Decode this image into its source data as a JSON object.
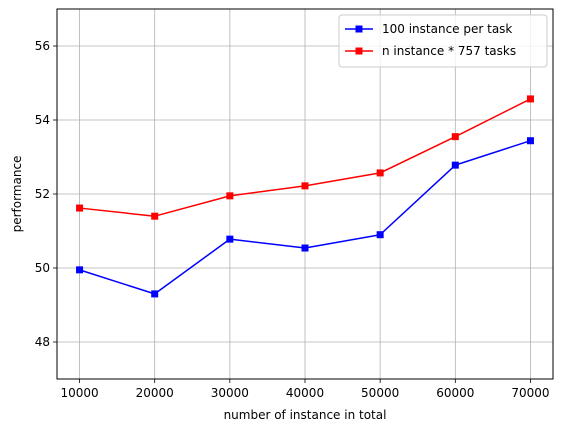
{
  "chart_data": {
    "type": "line",
    "title": "",
    "xlabel": "number of instance in total",
    "ylabel": "performance",
    "x": [
      10000,
      20000,
      30000,
      40000,
      50000,
      60000,
      70000
    ],
    "x_ticks": [
      "10000",
      "20000",
      "30000",
      "40000",
      "50000",
      "60000",
      "70000"
    ],
    "y_ticks": [
      "48",
      "50",
      "52",
      "54",
      "56"
    ],
    "xlim": [
      7000,
      73000
    ],
    "ylim": [
      47.0,
      57.0
    ],
    "grid": true,
    "legend_position": "top-right",
    "series": [
      {
        "name": "100 instance per task",
        "color": "#0000ff",
        "marker": "square",
        "values": [
          49.95,
          49.3,
          50.78,
          50.54,
          50.9,
          52.78,
          53.44
        ]
      },
      {
        "name": "n instance * 757 tasks",
        "color": "#ff0000",
        "marker": "square",
        "values": [
          51.62,
          51.4,
          51.95,
          52.22,
          52.57,
          53.55,
          54.57
        ]
      }
    ]
  }
}
